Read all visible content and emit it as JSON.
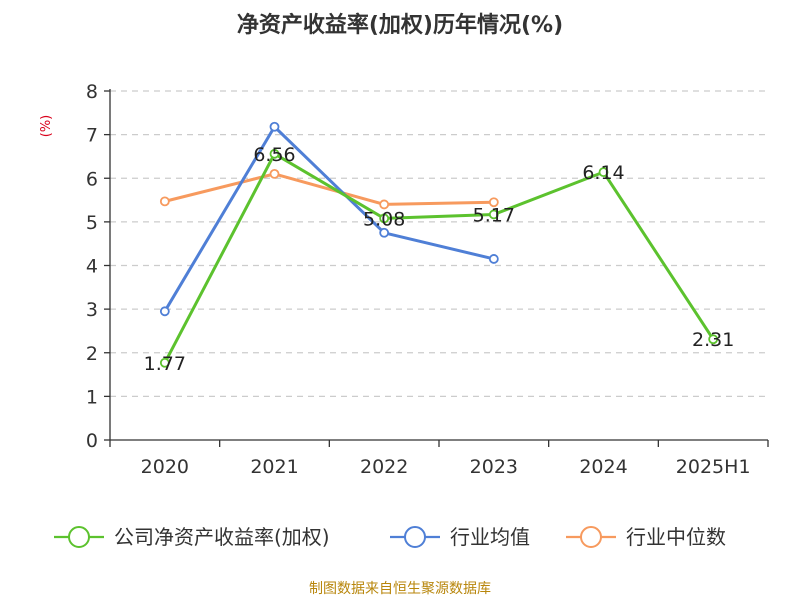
{
  "chart_data": {
    "type": "line",
    "title": "净资产收益率(加权)历年情况(%)",
    "ylabel": "(%)",
    "xlabel": "",
    "categories": [
      "2020",
      "2021",
      "2022",
      "2023",
      "2024",
      "2025H1"
    ],
    "ylim": [
      0,
      8
    ],
    "yticks": [
      0,
      1,
      2,
      3,
      4,
      5,
      6,
      7,
      8
    ],
    "grid": "horizontal-dashed",
    "legend_position": "bottom",
    "series": [
      {
        "name": "公司净资产收益率(加权)",
        "color": "#5cc22e",
        "values": [
          1.77,
          6.56,
          5.08,
          5.17,
          6.14,
          2.31
        ],
        "data_labels": [
          "1.77",
          "6.56",
          "5.08",
          "5.17",
          "6.14",
          "2.31"
        ]
      },
      {
        "name": "行业均值",
        "color": "#4f7fd6",
        "values": [
          2.95,
          7.18,
          4.75,
          4.15,
          null,
          null
        ]
      },
      {
        "name": "行业中位数",
        "color": "#f79a5e",
        "values": [
          5.47,
          6.1,
          5.4,
          5.45,
          null,
          null
        ]
      }
    ]
  },
  "footer": {
    "source": "制图数据来自恒生聚源数据库"
  }
}
